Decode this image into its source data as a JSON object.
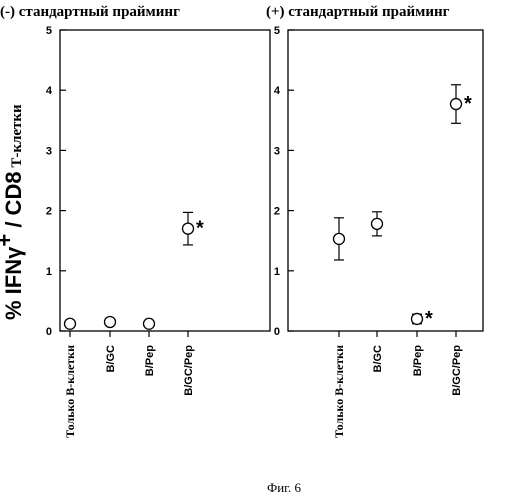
{
  "chart_data": [
    {
      "type": "scatter",
      "title": "(-) стандартный прайминг",
      "ylim": [
        0,
        5
      ],
      "yticks": [
        0,
        1,
        2,
        3,
        4,
        5
      ],
      "categories": [
        "Только В-клетки",
        "B/GC",
        "B/Pep",
        "B/GC/Pep"
      ],
      "values": [
        0.12,
        0.15,
        0.12,
        1.7
      ],
      "error": [
        0,
        0,
        0,
        0.27
      ],
      "significant": [
        false,
        false,
        false,
        true
      ],
      "marker": "open-circle",
      "grid": false
    },
    {
      "type": "scatter",
      "title": "(+) стандартный прайминг",
      "ylim": [
        0,
        5
      ],
      "yticks": [
        0,
        1,
        2,
        3,
        4,
        5
      ],
      "categories": [
        "Только В-клетки",
        "B/GC",
        "B/Pep",
        "B/GC/Pep"
      ],
      "values": [
        1.53,
        1.78,
        0.2,
        3.77
      ],
      "error": [
        0.35,
        0.2,
        0.08,
        0.32
      ],
      "significant": [
        false,
        false,
        true,
        true
      ],
      "marker": "open-circle",
      "grid": false
    }
  ],
  "ylabel_main": "% IFNγ",
  "ylabel_sup": "+",
  "ylabel_rest": " / CD8",
  "ylabel_small": " Т-клетки",
  "star_symbol": "*",
  "caption": "Фиг. 6"
}
